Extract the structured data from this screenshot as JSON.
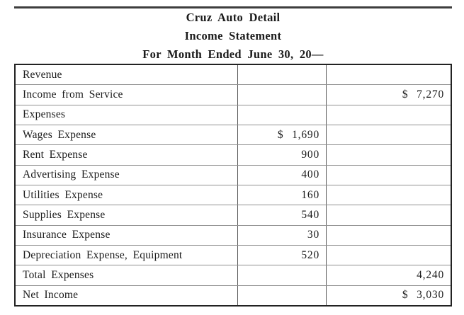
{
  "header": {
    "title": "Cruz Auto Detail",
    "subtitle": "Income Statement",
    "period": "For Month Ended June 30, 20—"
  },
  "table": {
    "columns": [
      "account",
      "debit_amount",
      "credit_amount"
    ],
    "rows": [
      {
        "label": "Revenue",
        "debit": "",
        "credit": ""
      },
      {
        "label": "Income from Service",
        "debit": "",
        "credit": "$ 7,270"
      },
      {
        "label": "Expenses",
        "debit": "",
        "credit": ""
      },
      {
        "label": "Wages Expense",
        "debit": "$ 1,690",
        "credit": ""
      },
      {
        "label": "Rent Expense",
        "debit": "900",
        "credit": ""
      },
      {
        "label": "Advertising Expense",
        "debit": "400",
        "credit": ""
      },
      {
        "label": "Utilities Expense",
        "debit": "160",
        "credit": ""
      },
      {
        "label": "Supplies Expense",
        "debit": "540",
        "credit": ""
      },
      {
        "label": "Insurance Expense",
        "debit": "30",
        "credit": ""
      },
      {
        "label": "Depreciation Expense, Equipment",
        "debit": "520",
        "credit": ""
      },
      {
        "label": "Total Expenses",
        "debit": "",
        "credit": "4,240"
      },
      {
        "label": "Net Income",
        "debit": "",
        "credit": "$ 3,030"
      }
    ]
  },
  "colors": {
    "top_rule": "#3d3d3d",
    "outer_border": "#222222",
    "inner_horizontal_line": "#909090",
    "inner_vertical_line": "#555555",
    "text": "#1b1b1b",
    "background": "#ffffff"
  }
}
